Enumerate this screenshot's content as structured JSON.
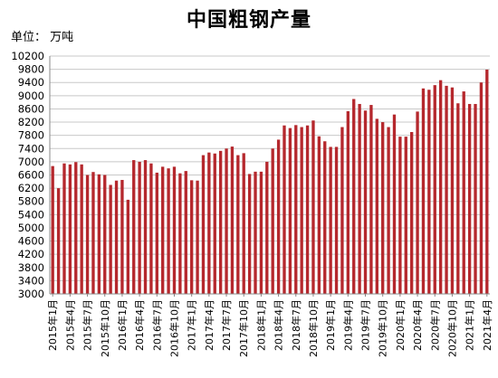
{
  "chart_data": {
    "type": "bar",
    "title": "中国粗钢产量",
    "unit_label": "单位：   万吨",
    "bar_color": "#b5282d",
    "grid": true,
    "ylim": [
      3000,
      10200
    ],
    "yticks": [
      3000,
      3400,
      3800,
      4200,
      4600,
      5000,
      5400,
      5800,
      6200,
      6600,
      7000,
      7400,
      7800,
      8200,
      8600,
      9000,
      9400,
      9800,
      10200
    ],
    "categories": [
      "2015年1月",
      "2015年2月",
      "2015年3月",
      "2015年4月",
      "2015年5月",
      "2015年6月",
      "2015年7月",
      "2015年8月",
      "2015年9月",
      "2015年10月",
      "2015年11月",
      "2015年12月",
      "2016年1月",
      "2016年2月",
      "2016年3月",
      "2016年4月",
      "2016年5月",
      "2016年6月",
      "2016年7月",
      "2016年8月",
      "2016年9月",
      "2016年10月",
      "2016年11月",
      "2016年12月",
      "2017年1月",
      "2017年2月",
      "2017年3月",
      "2017年4月",
      "2017年5月",
      "2017年6月",
      "2017年7月",
      "2017年8月",
      "2017年9月",
      "2017年10月",
      "2017年11月",
      "2017年12月",
      "2018年1月",
      "2018年2月",
      "2018年3月",
      "2018年4月",
      "2018年5月",
      "2018年6月",
      "2018年7月",
      "2018年8月",
      "2018年9月",
      "2018年10月",
      "2018年11月",
      "2018年12月",
      "2019年1月",
      "2019年2月",
      "2019年3月",
      "2019年4月",
      "2019年5月",
      "2019年6月",
      "2019年7月",
      "2019年8月",
      "2019年9月",
      "2019年10月",
      "2019年11月",
      "2019年12月",
      "2020年1月",
      "2020年2月",
      "2020年3月",
      "2020年4月",
      "2020年5月",
      "2020年6月",
      "2020年7月",
      "2020年8月",
      "2020年9月",
      "2020年10月",
      "2020年11月",
      "2020年12月",
      "2021年1月",
      "2021年2月",
      "2021年3月",
      "2021年4月"
    ],
    "values": [
      6870,
      6200,
      6950,
      6920,
      6990,
      6920,
      6600,
      6690,
      6620,
      6600,
      6300,
      6430,
      6450,
      5850,
      7050,
      7000,
      7050,
      6950,
      6670,
      6850,
      6800,
      6850,
      6650,
      6720,
      6440,
      6430,
      7200,
      7280,
      7250,
      7330,
      7400,
      7460,
      7200,
      7260,
      6630,
      6700,
      6700,
      7000,
      7400,
      7670,
      8100,
      8020,
      8110,
      8050,
      8100,
      8250,
      7770,
      7620,
      7450,
      7450,
      8050,
      8530,
      8900,
      8750,
      8550,
      8720,
      8300,
      8200,
      8050,
      8430,
      7760,
      7760,
      7900,
      8520,
      9220,
      9180,
      9320,
      9470,
      9300,
      9250,
      8770,
      9130,
      8750,
      8750,
      9400,
      9790
    ],
    "x_tick_labels": [
      "2015年1月",
      "2015年4月",
      "2015年7月",
      "2015年10月",
      "2016年1月",
      "2016年4月",
      "2016年7月",
      "2016年10月",
      "2017年1月",
      "2017年4月",
      "2017年7月",
      "2017年10月",
      "2018年1月",
      "2018年4月",
      "2018年7月",
      "2018年10月",
      "2019年1月",
      "2019年4月",
      "2019年7月",
      "2019年10月",
      "2020年1月",
      "2020年4月",
      "2020年7月",
      "2020年10月",
      "2021年1月",
      "2021年4月"
    ]
  }
}
